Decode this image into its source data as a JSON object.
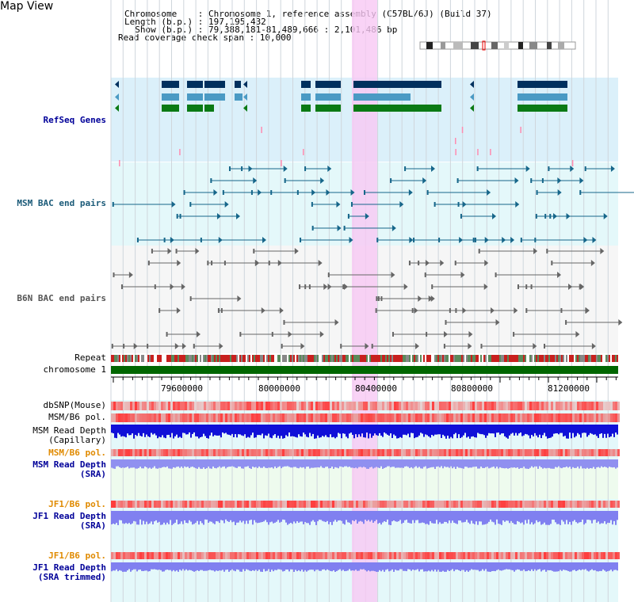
{
  "page_title": "Map View",
  "header": {
    "chromosome_line": "Chromosome    : Chromosome 1, reference assembly (C57BL/6J) (Build 37)",
    "length_line": "Length (b.p.) : 197,195,432",
    "show_line": "  Show (b.p.) : 79,388,181-81,489,666 : 2,101,486 bp",
    "coverage_line": "Read coverage check span : 10,000"
  },
  "tracks": {
    "refseq": "RefSeq Genes",
    "msm_bac": "MSM BAC end pairs",
    "b6n_bac": "B6N BAC end pairs",
    "repeat": "Repeat",
    "chromosome": "chromosome 1",
    "dbsnp": "dbSNP(Mouse)",
    "msm_b6_pol": "MSM/B6 pol.",
    "msm_depth_cap_1": "MSM Read Depth",
    "msm_depth_cap_2": "(Capillary)",
    "msm_b6_pol_sra": "MSM/B6 pol.",
    "msm_depth_sra_1": "MSM Read Depth",
    "msm_depth_sra_2": "(SRA)",
    "jf1_pol": "JF1/B6 pol.",
    "jf1_depth_1": "JF1 Read Depth",
    "jf1_depth_2": "(SRA)",
    "jf1_pol_trim": "JF1/B6 pol.",
    "jf1_trim_1": "JF1 Read Depth",
    "jf1_trim_2": "(SRA trimmed)"
  },
  "axis": {
    "ticks": [
      "79600000",
      "80000000",
      "80400000",
      "80800000",
      "81200000"
    ]
  },
  "colors": {
    "refseq_bg": "#dbf0fa",
    "msm_bg": "#e4f8fa",
    "b6n_bg": "#f4f4f4",
    "highlight": "#f4d4f4",
    "chrom_green": "#006600",
    "navy_gene": "#002f66",
    "teal_gene": "#3f8fb8",
    "green_gene": "#007a1a"
  }
}
